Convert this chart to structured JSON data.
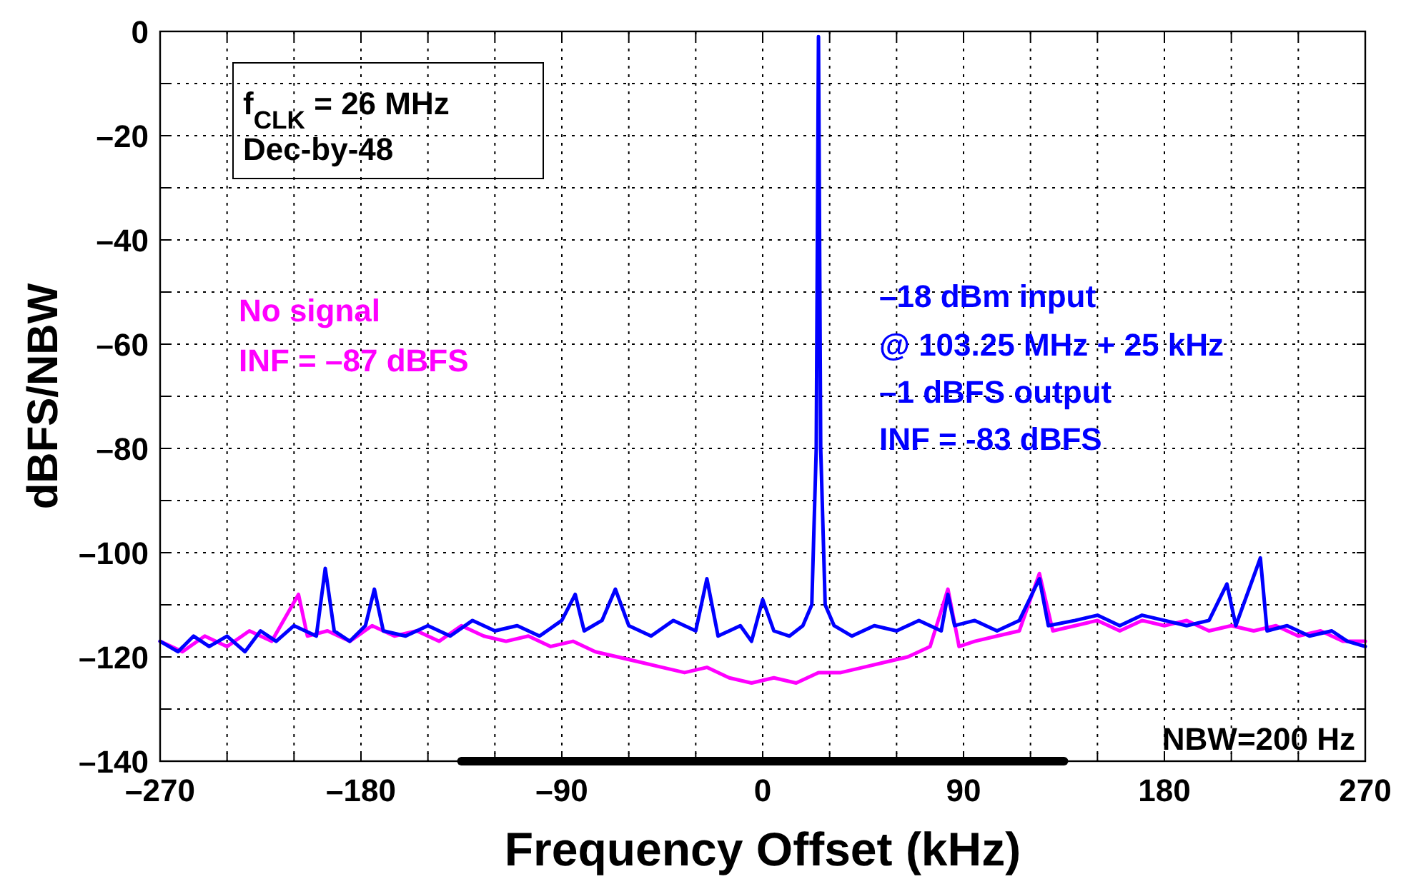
{
  "chart_data": {
    "type": "line",
    "xlabel": "Frequency Offset (kHz)",
    "ylabel": "dBFS/NBW",
    "xlim": [
      -270,
      270
    ],
    "ylim": [
      -140,
      0
    ],
    "xticks": [
      {
        "value": -270,
        "label": "–270"
      },
      {
        "value": -240,
        "label": null
      },
      {
        "value": -210,
        "label": null
      },
      {
        "value": -180,
        "label": "–180"
      },
      {
        "value": -150,
        "label": null
      },
      {
        "value": -120,
        "label": null
      },
      {
        "value": -90,
        "label": "–90"
      },
      {
        "value": -60,
        "label": null
      },
      {
        "value": -30,
        "label": null
      },
      0,
      {
        "value": 30,
        "label": null
      },
      {
        "value": 60,
        "label": null
      },
      90,
      {
        "value": 120,
        "label": null
      },
      {
        "value": 150,
        "label": null
      },
      180,
      {
        "value": 210,
        "label": null
      },
      {
        "value": 240,
        "label": null
      },
      270
    ],
    "yticks": [
      0,
      {
        "value": -10,
        "label": null
      },
      {
        "value": -20,
        "label": "–20"
      },
      {
        "value": -30,
        "label": null
      },
      {
        "value": -40,
        "label": "–40"
      },
      {
        "value": -50,
        "label": null
      },
      {
        "value": -60,
        "label": "–60"
      },
      {
        "value": -70,
        "label": null
      },
      {
        "value": -80,
        "label": "–80"
      },
      {
        "value": -90,
        "label": null
      },
      {
        "value": -100,
        "label": "–100"
      },
      {
        "value": -110,
        "label": null
      },
      {
        "value": -120,
        "label": "–120"
      },
      {
        "value": -130,
        "label": null
      },
      {
        "value": -140,
        "label": "–140"
      }
    ],
    "grid": true,
    "line_style": "solid",
    "series": [
      {
        "color": "#ff00ff",
        "x": [
          -270,
          -260,
          -250,
          -240,
          -230,
          -220,
          -208,
          -204,
          -195,
          -185,
          -175,
          -165,
          -155,
          -145,
          -135,
          -125,
          -115,
          -105,
          -95,
          -85,
          -75,
          -65,
          -55,
          -45,
          -35,
          -25,
          -15,
          -5,
          5,
          15,
          25,
          35,
          45,
          55,
          65,
          75,
          83,
          88,
          95,
          105,
          115,
          124,
          130,
          140,
          150,
          160,
          170,
          180,
          190,
          200,
          210,
          220,
          230,
          240,
          250,
          260,
          270
        ],
        "values": [
          -117,
          -119,
          -116,
          -118,
          -115,
          -117,
          -108,
          -116,
          -115,
          -117,
          -114,
          -116,
          -115,
          -117,
          -114,
          -116,
          -117,
          -116,
          -118,
          -117,
          -119,
          -120,
          -121,
          -122,
          -123,
          -122,
          -124,
          -125,
          -124,
          -125,
          -123,
          -123,
          -122,
          -121,
          -120,
          -118,
          -107,
          -118,
          -117,
          -116,
          -115,
          -104,
          -115,
          -114,
          -113,
          -115,
          -113,
          -114,
          -113,
          -115,
          -114,
          -115,
          -114,
          -116,
          -115,
          -117,
          -117
        ]
      },
      {
        "color": "#0000ff",
        "x": [
          -270,
          -262,
          -255,
          -248,
          -240,
          -232,
          -225,
          -218,
          -210,
          -200,
          -196,
          -192,
          -185,
          -178,
          -174,
          -170,
          -160,
          -150,
          -140,
          -130,
          -120,
          -110,
          -100,
          -90,
          -84,
          -80,
          -72,
          -66,
          -60,
          -50,
          -40,
          -30,
          -25,
          -20,
          -10,
          -5,
          0,
          5,
          12,
          18,
          22,
          24,
          25,
          26,
          28,
          32,
          40,
          50,
          60,
          70,
          80,
          83,
          86,
          95,
          105,
          115,
          124,
          128,
          140,
          150,
          160,
          170,
          180,
          190,
          200,
          208,
          212,
          223,
          226,
          235,
          245,
          255,
          262,
          270
        ],
        "values": [
          -117,
          -119,
          -116,
          -118,
          -116,
          -119,
          -115,
          -117,
          -114,
          -116,
          -103,
          -115,
          -117,
          -114,
          -107,
          -115,
          -116,
          -114,
          -116,
          -113,
          -115,
          -114,
          -116,
          -113,
          -108,
          -115,
          -113,
          -107,
          -114,
          -116,
          -113,
          -115,
          -105,
          -116,
          -114,
          -117,
          -109,
          -115,
          -116,
          -114,
          -110,
          -80,
          -1,
          -80,
          -110,
          -114,
          -116,
          -114,
          -115,
          -113,
          -115,
          -108,
          -114,
          -113,
          -115,
          -113,
          -105,
          -114,
          -113,
          -112,
          -114,
          -112,
          -113,
          -114,
          -113,
          -106,
          -114,
          -101,
          -115,
          -114,
          -116,
          -115,
          -117,
          -118
        ]
      },
      {
        "color": "#000000",
        "x": [
          -135,
          135
        ],
        "values": [
          -140,
          -140
        ]
      }
    ],
    "annotations": [
      "f$_{CLK}$ = 26 MHz",
      "Dec-by-48",
      "No signal",
      "INF = –87 dBFS",
      "–18 dBm input",
      "@ 103.25 MHz + 25 kHz",
      "–1 dBFS output",
      "INF = -83 dBFS",
      "NBW=200 Hz"
    ]
  }
}
